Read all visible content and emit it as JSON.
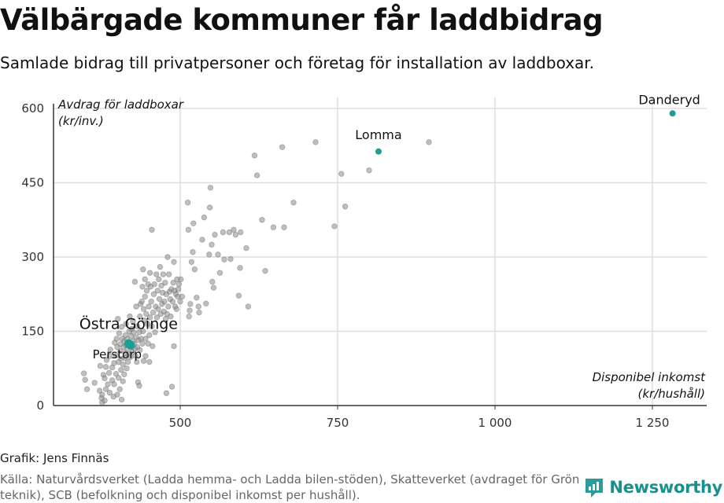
{
  "title": "Välbärgade kommuner får laddbidrag",
  "subtitle": "Samlade bidrag till privatpersoner och företag för installation av laddboxar.",
  "byline": "Grafik: Jens Finnäs",
  "source": "Källa: Naturvårdsverket (Ladda hemma- och Ladda bilen-stöden), Skatteverket (avdraget för Grön teknik), SCB (befolkning och disponibel inkomst per hushåll).",
  "brand": {
    "name": "Newsworthy",
    "icon": "newsworthy-logo-icon"
  },
  "colors": {
    "highlight": "#1a9e96",
    "point": "#8a8a8a",
    "grid": "#dddddd",
    "axis": "#333333"
  },
  "chart_data": {
    "type": "scatter",
    "ylabel": [
      "Avdrag för laddboxar",
      "(kr/inv.)"
    ],
    "xlabel": [
      "Disponibel inkomst",
      "(kr/hushåll)"
    ],
    "xlim": [
      300,
      1330
    ],
    "ylim": [
      0,
      630
    ],
    "xticks": [
      500,
      750,
      1000,
      1250
    ],
    "xtick_labels": [
      "500",
      "750",
      "1 000",
      "1 250"
    ],
    "yticks": [
      0,
      150,
      300,
      450,
      600
    ],
    "ytick_labels": [
      "0",
      "150",
      "300",
      "450",
      "600"
    ],
    "grid": "major gridlines",
    "highlighted": [
      {
        "name": "Danderyd",
        "x": 1282,
        "y": 590
      },
      {
        "name": "Lomma",
        "x": 815,
        "y": 513
      },
      {
        "name": "Östra Göinge",
        "x": 418,
        "y": 125
      },
      {
        "name": "Perstorp",
        "x": 421,
        "y": 122
      }
    ],
    "points": [
      [
        347,
        65
      ],
      [
        349,
        52
      ],
      [
        352,
        33
      ],
      [
        364,
        46
      ],
      [
        372,
        30
      ],
      [
        373,
        80
      ],
      [
        375,
        15
      ],
      [
        376,
        6
      ],
      [
        376,
        22
      ],
      [
        378,
        62
      ],
      [
        380,
        10
      ],
      [
        380,
        55
      ],
      [
        382,
        33
      ],
      [
        382,
        78
      ],
      [
        383,
        92
      ],
      [
        385,
        43
      ],
      [
        387,
        66
      ],
      [
        388,
        26
      ],
      [
        388,
        100
      ],
      [
        389,
        113
      ],
      [
        392,
        51
      ],
      [
        392,
        77
      ],
      [
        394,
        18
      ],
      [
        395,
        43
      ],
      [
        395,
        86
      ],
      [
        396,
        127
      ],
      [
        398,
        64
      ],
      [
        398,
        101
      ],
      [
        399,
        135
      ],
      [
        400,
        22
      ],
      [
        400,
        118
      ],
      [
        401,
        175
      ],
      [
        402,
        56
      ],
      [
        402,
        88
      ],
      [
        403,
        146
      ],
      [
        404,
        33
      ],
      [
        405,
        110
      ],
      [
        405,
        124
      ],
      [
        406,
        72
      ],
      [
        406,
        95
      ],
      [
        407,
        12
      ],
      [
        407,
        159
      ],
      [
        408,
        135
      ],
      [
        409,
        49
      ],
      [
        409,
        83
      ],
      [
        410,
        118
      ],
      [
        411,
        63
      ],
      [
        411,
        130
      ],
      [
        412,
        96
      ],
      [
        413,
        106
      ],
      [
        413,
        142
      ],
      [
        414,
        122
      ],
      [
        414,
        165
      ],
      [
        415,
        75
      ],
      [
        416,
        113
      ],
      [
        416,
        134
      ],
      [
        417,
        88
      ],
      [
        418,
        103
      ],
      [
        419,
        150
      ],
      [
        419,
        128
      ],
      [
        420,
        180
      ],
      [
        420,
        120
      ],
      [
        421,
        98
      ],
      [
        422,
        140
      ],
      [
        423,
        118
      ],
      [
        423,
        155
      ],
      [
        424,
        108
      ],
      [
        425,
        130
      ],
      [
        425,
        170
      ],
      [
        426,
        148
      ],
      [
        427,
        125
      ],
      [
        428,
        115
      ],
      [
        428,
        250
      ],
      [
        429,
        100
      ],
      [
        430,
        138
      ],
      [
        430,
        200
      ],
      [
        431,
        88
      ],
      [
        432,
        118
      ],
      [
        432,
        160
      ],
      [
        433,
        47
      ],
      [
        434,
        132
      ],
      [
        435,
        40
      ],
      [
        435,
        148
      ],
      [
        436,
        112
      ],
      [
        436,
        180
      ],
      [
        437,
        205
      ],
      [
        438,
        135
      ],
      [
        439,
        210
      ],
      [
        440,
        125
      ],
      [
        440,
        240
      ],
      [
        441,
        150
      ],
      [
        441,
        275
      ],
      [
        442,
        90
      ],
      [
        442,
        195
      ],
      [
        443,
        172
      ],
      [
        444,
        220
      ],
      [
        444,
        255
      ],
      [
        445,
        135
      ],
      [
        445,
        100
      ],
      [
        446,
        185
      ],
      [
        447,
        232
      ],
      [
        448,
        165
      ],
      [
        449,
        125
      ],
      [
        449,
        245
      ],
      [
        450,
        200
      ],
      [
        451,
        88
      ],
      [
        451,
        142
      ],
      [
        452,
        178
      ],
      [
        452,
        268
      ],
      [
        453,
        240
      ],
      [
        454,
        210
      ],
      [
        455,
        160
      ],
      [
        455,
        355
      ],
      [
        456,
        120
      ],
      [
        457,
        188
      ],
      [
        458,
        225
      ],
      [
        459,
        245
      ],
      [
        460,
        148
      ],
      [
        461,
        200
      ],
      [
        462,
        265
      ],
      [
        463,
        178
      ],
      [
        464,
        232
      ],
      [
        465,
        195
      ],
      [
        466,
        255
      ],
      [
        467,
        215
      ],
      [
        468,
        280
      ],
      [
        469,
        185
      ],
      [
        470,
        242
      ],
      [
        471,
        205
      ],
      [
        472,
        228
      ],
      [
        473,
        265
      ],
      [
        474,
        190
      ],
      [
        475,
        210
      ],
      [
        476,
        248
      ],
      [
        477,
        175
      ],
      [
        478,
        225
      ],
      [
        478,
        25
      ],
      [
        479,
        185
      ],
      [
        480,
        300
      ],
      [
        481,
        200
      ],
      [
        482,
        265
      ],
      [
        483,
        230
      ],
      [
        484,
        215
      ],
      [
        485,
        180
      ],
      [
        486,
        235
      ],
      [
        487,
        38
      ],
      [
        488,
        210
      ],
      [
        489,
        248
      ],
      [
        490,
        290
      ],
      [
        490,
        120
      ],
      [
        491,
        232
      ],
      [
        492,
        200
      ],
      [
        493,
        225
      ],
      [
        494,
        195
      ],
      [
        495,
        255
      ],
      [
        496,
        220
      ],
      [
        497,
        235
      ],
      [
        498,
        245
      ],
      [
        500,
        210
      ],
      [
        501,
        255
      ],
      [
        503,
        220
      ],
      [
        512,
        410
      ],
      [
        513,
        355
      ],
      [
        514,
        180
      ],
      [
        515,
        192
      ],
      [
        516,
        205
      ],
      [
        518,
        290
      ],
      [
        520,
        310
      ],
      [
        521,
        368
      ],
      [
        523,
        275
      ],
      [
        526,
        218
      ],
      [
        529,
        200
      ],
      [
        530,
        188
      ],
      [
        535,
        335
      ],
      [
        538,
        380
      ],
      [
        541,
        206
      ],
      [
        546,
        305
      ],
      [
        547,
        400
      ],
      [
        548,
        440
      ],
      [
        550,
        325
      ],
      [
        551,
        250
      ],
      [
        553,
        238
      ],
      [
        555,
        345
      ],
      [
        560,
        305
      ],
      [
        563,
        268
      ],
      [
        568,
        350
      ],
      [
        570,
        295
      ],
      [
        578,
        350
      ],
      [
        580,
        296
      ],
      [
        585,
        355
      ],
      [
        588,
        345
      ],
      [
        593,
        222
      ],
      [
        595,
        278
      ],
      [
        596,
        350
      ],
      [
        605,
        318
      ],
      [
        608,
        200
      ],
      [
        618,
        505
      ],
      [
        622,
        465
      ],
      [
        630,
        375
      ],
      [
        635,
        272
      ],
      [
        648,
        360
      ],
      [
        662,
        522
      ],
      [
        665,
        360
      ],
      [
        680,
        410
      ],
      [
        715,
        532
      ],
      [
        745,
        362
      ],
      [
        756,
        468
      ],
      [
        762,
        402
      ],
      [
        800,
        475
      ],
      [
        895,
        532
      ]
    ]
  }
}
